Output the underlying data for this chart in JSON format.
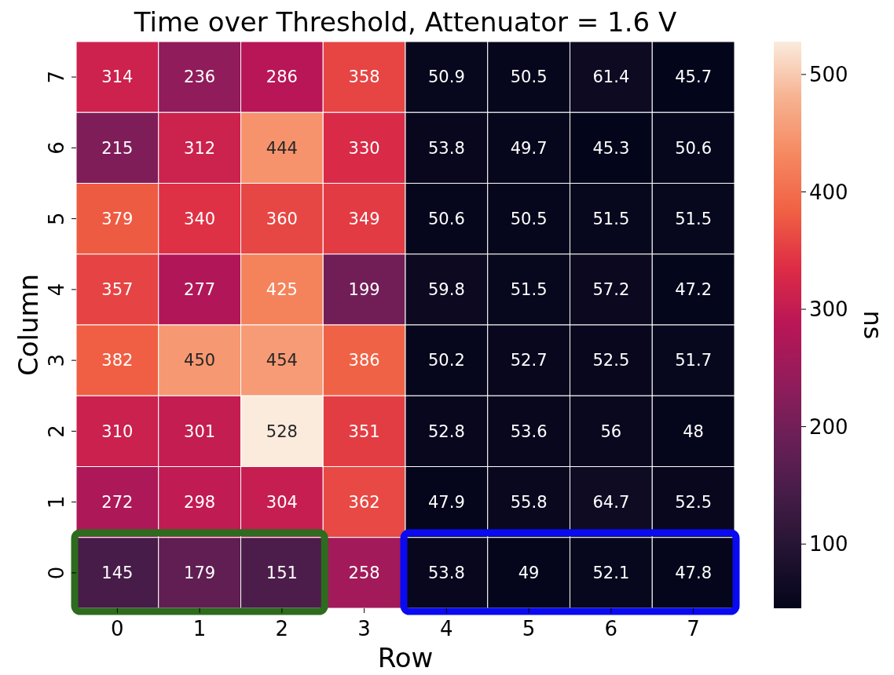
{
  "chart_data": {
    "type": "heatmap",
    "title": "Time over Threshold, Attenuator = 1.6 V",
    "xlabel": "Row",
    "ylabel": "Column",
    "clabel": "ns",
    "categories": [
      "0",
      "1",
      "2",
      "3",
      "4",
      "5",
      "6",
      "7"
    ],
    "y_categories": [
      "7",
      "6",
      "5",
      "4",
      "3",
      "2",
      "1",
      "0"
    ],
    "cells": [
      [
        314,
        236,
        286,
        358,
        50.9,
        50.5,
        61.4,
        45.7
      ],
      [
        215,
        312,
        444,
        330,
        53.8,
        49.7,
        45.3,
        50.6
      ],
      [
        379,
        340,
        360,
        349,
        50.6,
        50.5,
        51.5,
        51.5
      ],
      [
        357,
        277,
        425,
        199,
        59.8,
        51.5,
        57.2,
        47.2
      ],
      [
        382,
        450,
        454,
        386,
        50.2,
        52.7,
        52.5,
        51.7
      ],
      [
        310,
        301,
        528,
        351,
        52.8,
        53.6,
        56,
        48
      ],
      [
        272,
        298,
        304,
        362,
        47.9,
        55.8,
        64.7,
        52.5
      ],
      [
        145,
        179,
        151,
        258,
        53.8,
        49,
        52.1,
        47.8
      ]
    ],
    "clim": [
      45.3,
      528
    ],
    "cticks": [
      100,
      200,
      300,
      400,
      500
    ],
    "data_labels": true
  }
}
